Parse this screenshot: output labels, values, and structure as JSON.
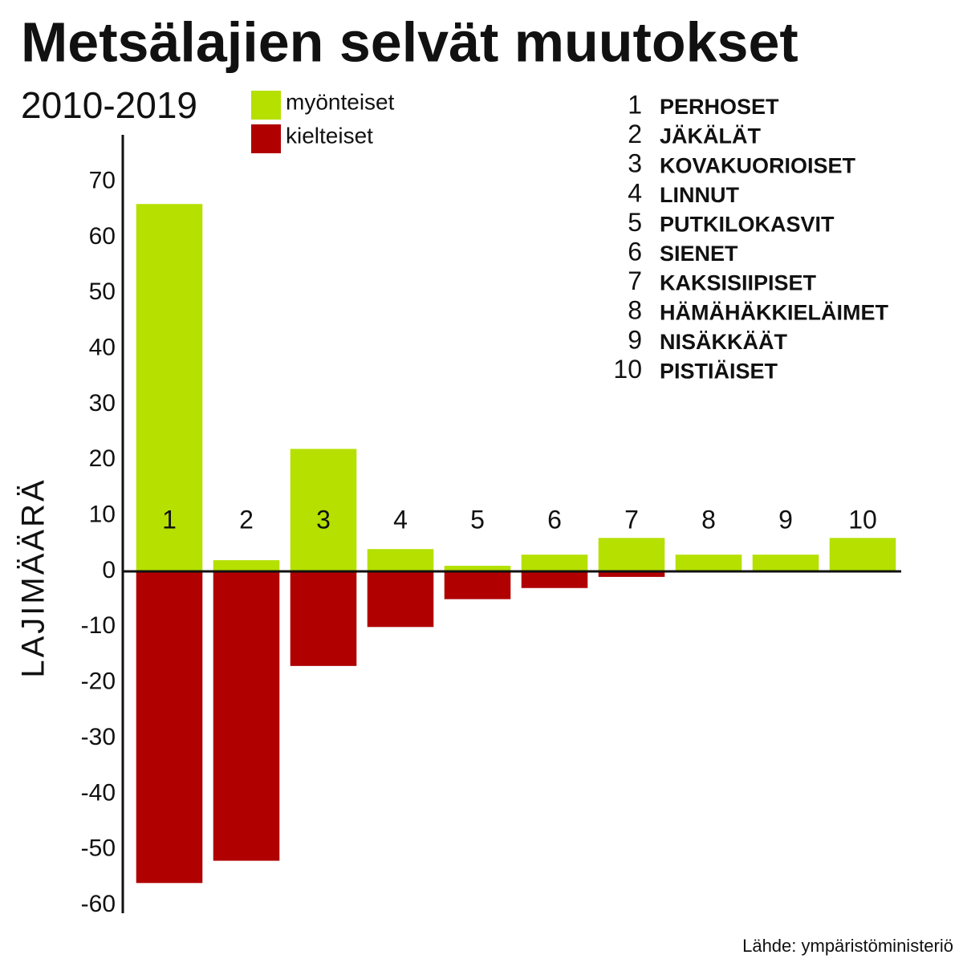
{
  "chart_data": {
    "type": "bar",
    "title": "Metsälajien selvät muutokset",
    "subtitle": "2010-2019",
    "y_label": "LAJIMÄÄRÄ",
    "source": "Lähde: ympäristöministeriö",
    "categories": [
      "1",
      "2",
      "3",
      "4",
      "5",
      "6",
      "7",
      "8",
      "9",
      "10"
    ],
    "series": [
      {
        "name": "myönteiset",
        "color": "#b5e000",
        "values": [
          66,
          2,
          22,
          4,
          1,
          3,
          6,
          3,
          3,
          6
        ]
      },
      {
        "name": "kielteiset",
        "color": "#b00000",
        "values": [
          -56,
          -52,
          -17,
          -10,
          -5,
          -3,
          -1,
          0,
          0,
          0
        ]
      }
    ],
    "key": [
      {
        "number": "1",
        "name": "PERHOSET"
      },
      {
        "number": "2",
        "name": "JÄKÄLÄT"
      },
      {
        "number": "3",
        "name": "KOVAKUORIOISET"
      },
      {
        "number": "4",
        "name": "LINNUT"
      },
      {
        "number": "5",
        "name": "PUTKILOKASVIT"
      },
      {
        "number": "6",
        "name": "SIENET"
      },
      {
        "number": "7",
        "name": "KAKSISIIPISET"
      },
      {
        "number": "8",
        "name": "HÄMÄHÄKKIELÄIMET"
      },
      {
        "number": "9",
        "name": "NISÄKKÄÄT"
      },
      {
        "number": "10",
        "name": "PISTIÄISET"
      }
    ],
    "ylim": [
      -61,
      78
    ],
    "yticks": [
      -60,
      -50,
      -40,
      -30,
      -20,
      -10,
      0,
      10,
      20,
      30,
      40,
      50,
      60,
      70
    ],
    "grid": false
  }
}
